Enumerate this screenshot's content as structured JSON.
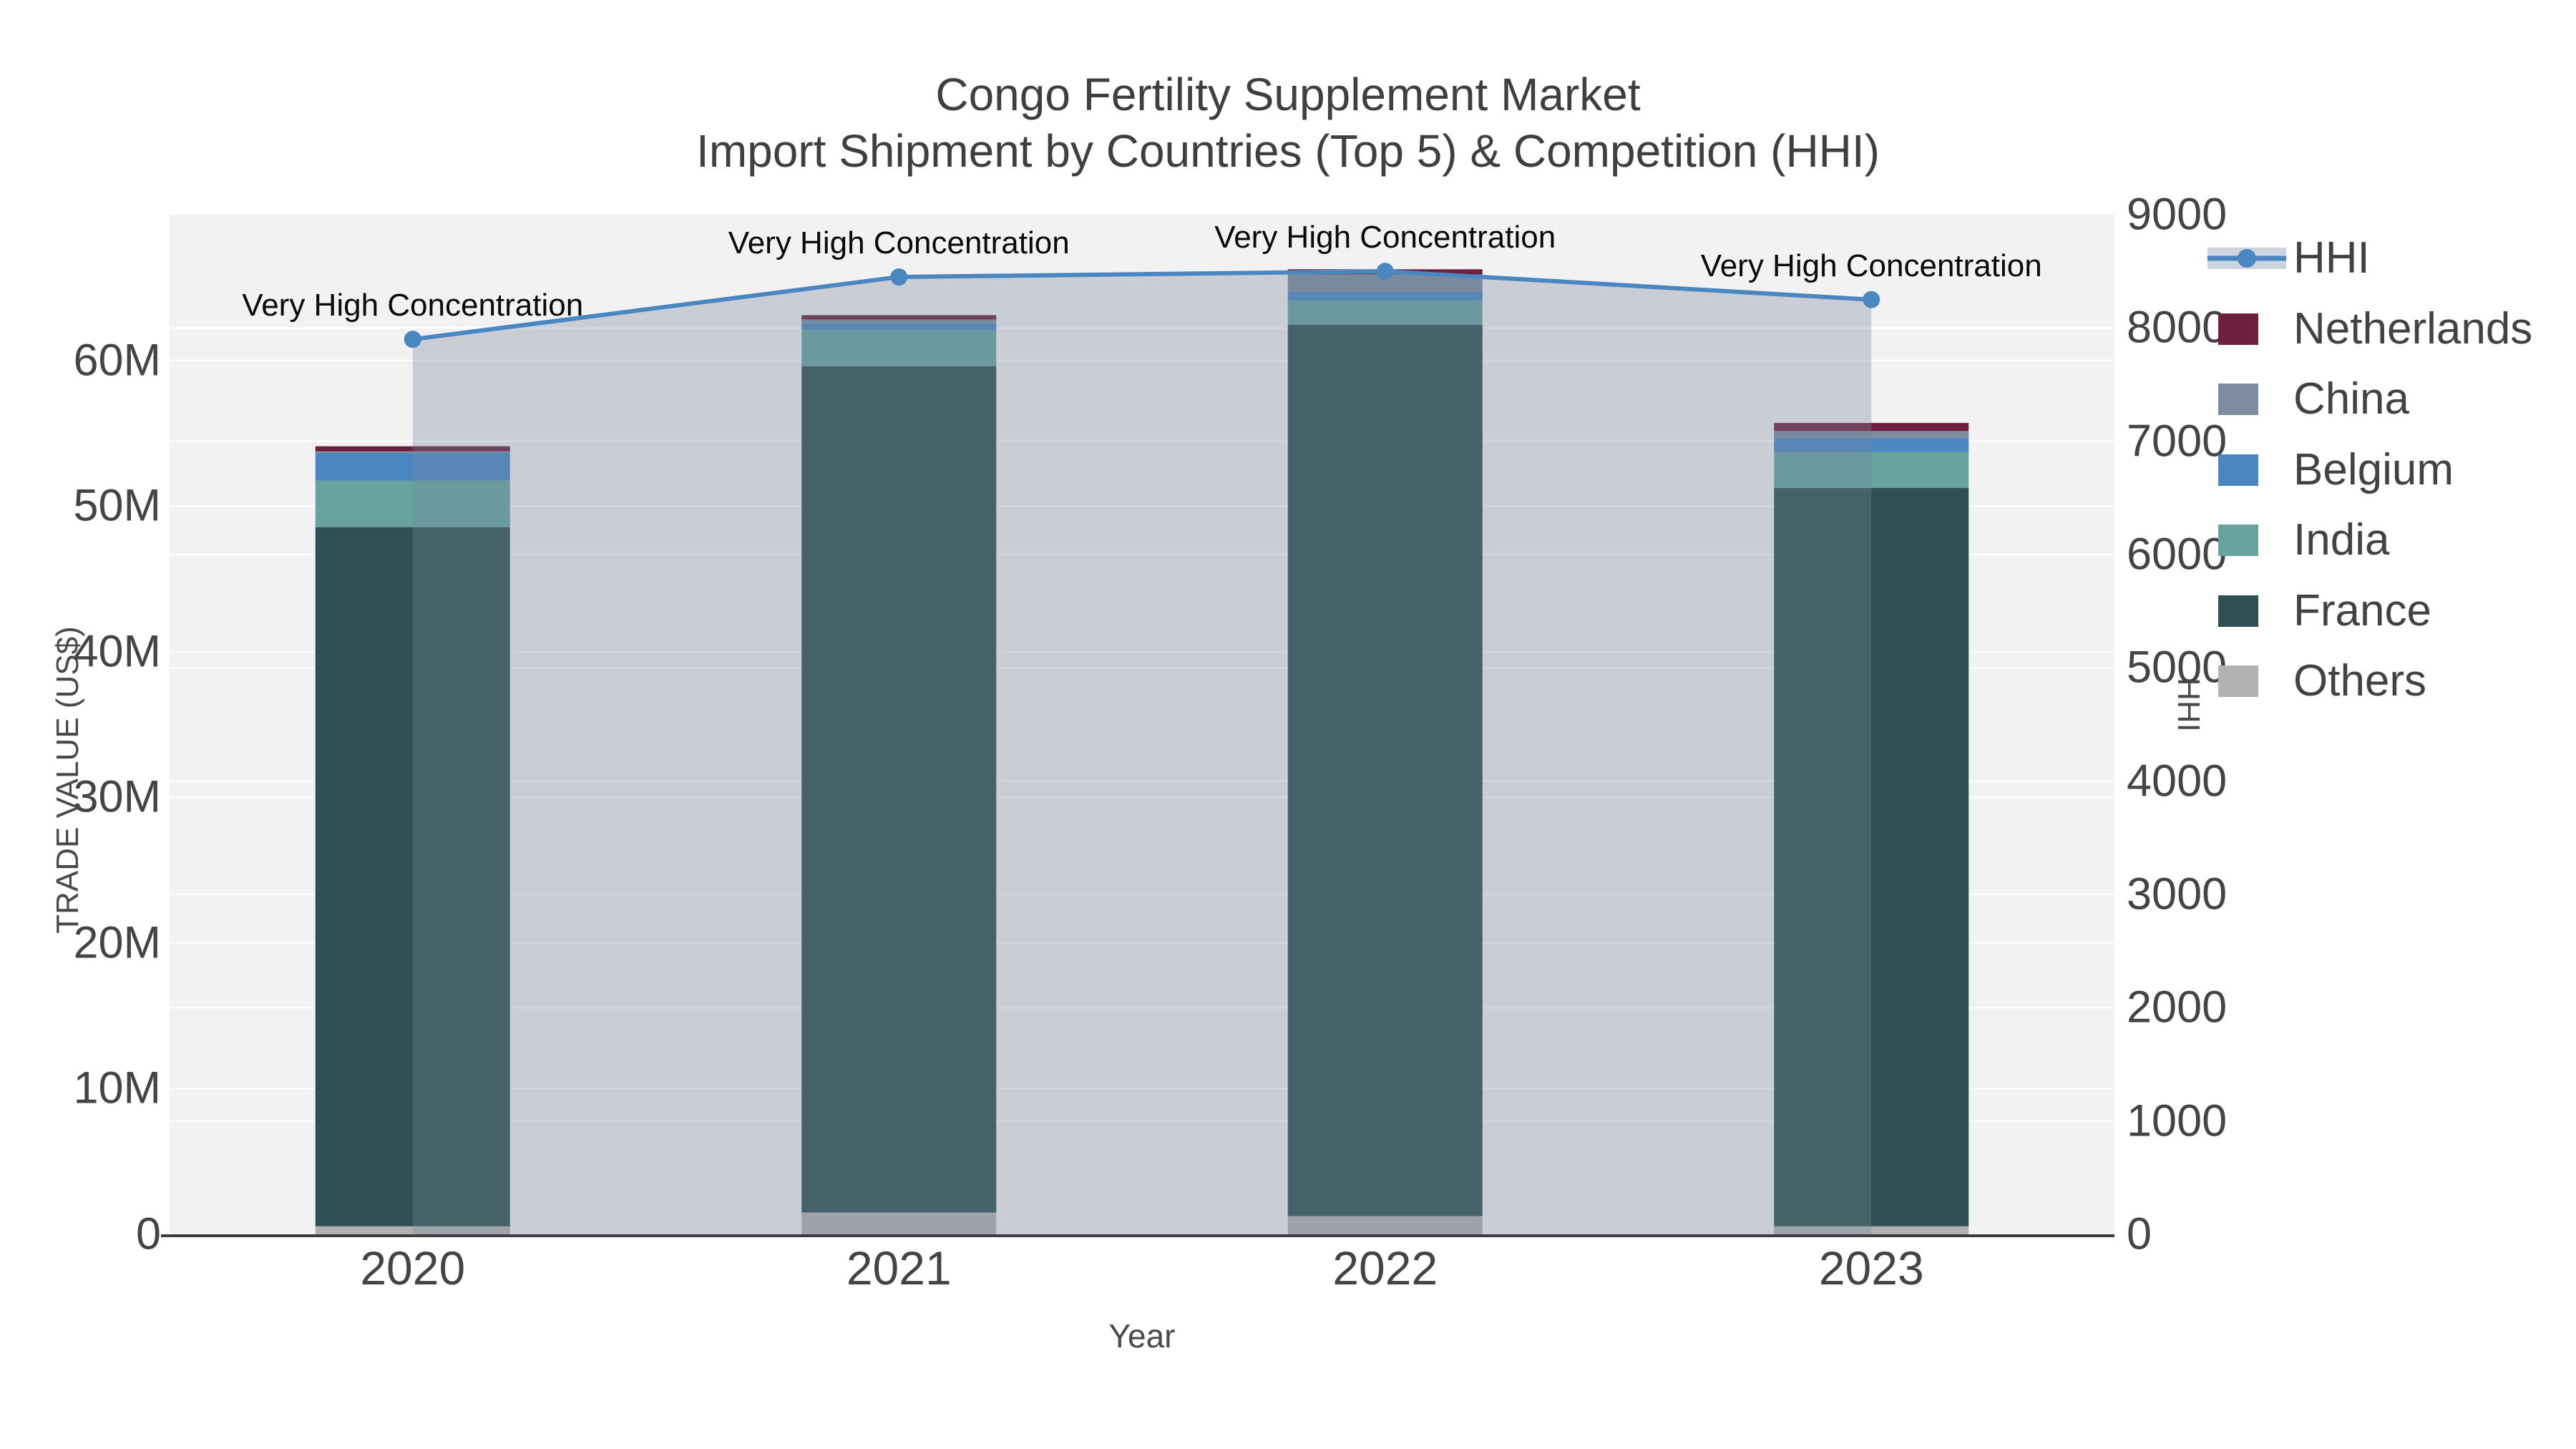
{
  "chart_data": {
    "type": "bar",
    "title": "Congo Fertility Supplement Market",
    "subtitle": "Import Shipment by Countries (Top 5) & Competition (HHI)",
    "xlabel": "Year",
    "categories": [
      "2020",
      "2021",
      "2022",
      "2023"
    ],
    "stacked": true,
    "series": [
      {
        "name": "Others",
        "color": "#b2b2b2",
        "values": [
          0.55,
          1.5,
          1.25,
          0.55
        ]
      },
      {
        "name": "France",
        "color": "#2e4f53",
        "values": [
          48.0,
          58.1,
          61.2,
          50.7
        ]
      },
      {
        "name": "India",
        "color": "#68a3a0",
        "values": [
          3.2,
          2.5,
          1.65,
          2.45
        ]
      },
      {
        "name": "Belgium",
        "color": "#4a86c2",
        "values": [
          1.9,
          0.45,
          0.6,
          0.95
        ]
      },
      {
        "name": "China",
        "color": "#7d8ca0",
        "values": [
          0.1,
          0.25,
          1.2,
          0.5
        ]
      },
      {
        "name": "Netherlands",
        "color": "#6e1e3e",
        "values": [
          0.35,
          0.3,
          0.35,
          0.55
        ]
      }
    ],
    "line_series": {
      "name": "HHI",
      "color": "#4a86c0",
      "area_fill": "rgba(119,134,155,0.33)",
      "values": [
        7900,
        8450,
        8500,
        8250
      ]
    },
    "annotations": [
      {
        "text": "Very High Concentration"
      },
      {
        "text": "Very High Concentration"
      },
      {
        "text": "Very High Concentration"
      },
      {
        "text": "Very High Concentration"
      }
    ],
    "y_left": {
      "title": "TRADE VALUE (US$)",
      "max": 70,
      "tick_values": [
        0,
        10,
        20,
        30,
        40,
        50,
        60
      ],
      "tick_labels": [
        "0",
        "10M",
        "20M",
        "30M",
        "40M",
        "50M",
        "60M"
      ]
    },
    "y_right": {
      "title": "HHI",
      "max": 9000,
      "tick_values": [
        0,
        1000,
        2000,
        3000,
        4000,
        5000,
        6000,
        7000,
        8000,
        9000
      ],
      "tick_labels": [
        "0",
        "1000",
        "2000",
        "3000",
        "4000",
        "5000",
        "6000",
        "7000",
        "8000",
        "9000"
      ]
    },
    "legend": [
      {
        "label": "HHI",
        "kind": "line"
      },
      {
        "label": "Netherlands",
        "kind": "swatch",
        "color": "#6e1e3e"
      },
      {
        "label": "China",
        "kind": "swatch",
        "color": "#7d8ca0"
      },
      {
        "label": "Belgium",
        "kind": "swatch",
        "color": "#4a86c2"
      },
      {
        "label": "India",
        "kind": "swatch",
        "color": "#68a3a0"
      },
      {
        "label": "France",
        "kind": "swatch",
        "color": "#2e4f53"
      },
      {
        "label": "Others",
        "kind": "swatch",
        "color": "#b2b2b2"
      }
    ],
    "colors": {
      "plot_background": "#f2f2f3",
      "gridline": "#ffffff",
      "axis_line": "#3c3c3c",
      "hhi_band_legend": "#cdd3dc"
    }
  }
}
